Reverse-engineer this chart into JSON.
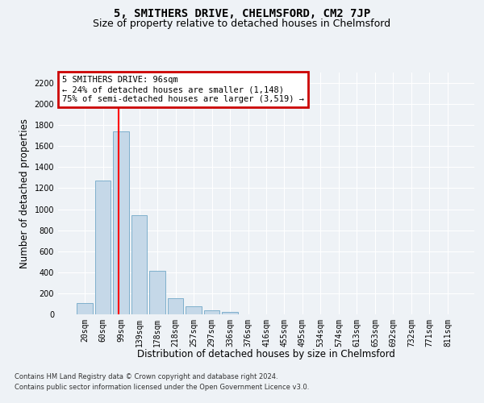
{
  "title": "5, SMITHERS DRIVE, CHELMSFORD, CM2 7JP",
  "subtitle": "Size of property relative to detached houses in Chelmsford",
  "xlabel": "Distribution of detached houses by size in Chelmsford",
  "ylabel": "Number of detached properties",
  "footer_line1": "Contains HM Land Registry data © Crown copyright and database right 2024.",
  "footer_line2": "Contains public sector information licensed under the Open Government Licence v3.0.",
  "annotation_title": "5 SMITHERS DRIVE: 96sqm",
  "annotation_line1": "← 24% of detached houses are smaller (1,148)",
  "annotation_line2": "75% of semi-detached houses are larger (3,519) →",
  "bar_labels": [
    "20sqm",
    "60sqm",
    "99sqm",
    "139sqm",
    "178sqm",
    "218sqm",
    "257sqm",
    "297sqm",
    "336sqm",
    "376sqm",
    "416sqm",
    "455sqm",
    "495sqm",
    "534sqm",
    "574sqm",
    "613sqm",
    "653sqm",
    "692sqm",
    "732sqm",
    "771sqm",
    "811sqm"
  ],
  "bar_values": [
    110,
    1270,
    1740,
    940,
    415,
    150,
    75,
    38,
    25,
    0,
    0,
    0,
    0,
    0,
    0,
    0,
    0,
    0,
    0,
    0,
    0
  ],
  "bar_color": "#c5d8e8",
  "bar_edge_color": "#7fb0cc",
  "red_line_x": 1.85,
  "ylim": [
    0,
    2300
  ],
  "yticks": [
    0,
    200,
    400,
    600,
    800,
    1000,
    1200,
    1400,
    1600,
    1800,
    2000,
    2200
  ],
  "background_color": "#eef2f6",
  "plot_bg_color": "#eef2f6",
  "grid_color": "#ffffff",
  "title_fontsize": 10,
  "subtitle_fontsize": 9,
  "axis_label_fontsize": 8.5,
  "tick_fontsize": 7,
  "annotation_box_color": "#cc0000",
  "annotation_fontsize": 7.5,
  "footer_fontsize": 6.0
}
